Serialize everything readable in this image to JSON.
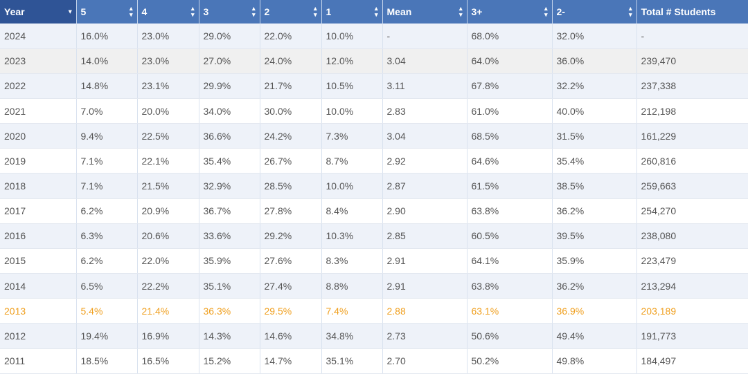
{
  "table": {
    "headers": [
      "Year",
      "5",
      "4",
      "3",
      "2",
      "1",
      "Mean",
      "3+",
      "2-",
      "Total # Students"
    ],
    "rows": [
      [
        "2024",
        "16.0%",
        "23.0%",
        "29.0%",
        "22.0%",
        "10.0%",
        "-",
        "68.0%",
        "32.0%",
        "-"
      ],
      [
        "2023",
        "14.0%",
        "23.0%",
        "27.0%",
        "24.0%",
        "12.0%",
        "3.04",
        "64.0%",
        "36.0%",
        "239,470"
      ],
      [
        "2022",
        "14.8%",
        "23.1%",
        "29.9%",
        "21.7%",
        "10.5%",
        "3.11",
        "67.8%",
        "32.2%",
        "237,338"
      ],
      [
        "2021",
        "7.0%",
        "20.0%",
        "34.0%",
        "30.0%",
        "10.0%",
        "2.83",
        "61.0%",
        "40.0%",
        "212,198"
      ],
      [
        "2020",
        "9.4%",
        "22.5%",
        "36.6%",
        "24.2%",
        "7.3%",
        "3.04",
        "68.5%",
        "31.5%",
        "161,229"
      ],
      [
        "2019",
        "7.1%",
        "22.1%",
        "35.4%",
        "26.7%",
        "8.7%",
        "2.92",
        "64.6%",
        "35.4%",
        "260,816"
      ],
      [
        "2018",
        "7.1%",
        "21.5%",
        "32.9%",
        "28.5%",
        "10.0%",
        "2.87",
        "61.5%",
        "38.5%",
        "259,663"
      ],
      [
        "2017",
        "6.2%",
        "20.9%",
        "36.7%",
        "27.8%",
        "8.4%",
        "2.90",
        "63.8%",
        "36.2%",
        "254,270"
      ],
      [
        "2016",
        "6.3%",
        "20.6%",
        "33.6%",
        "29.2%",
        "10.3%",
        "2.85",
        "60.5%",
        "39.5%",
        "238,080"
      ],
      [
        "2015",
        "6.2%",
        "22.0%",
        "35.9%",
        "27.6%",
        "8.3%",
        "2.91",
        "64.1%",
        "35.9%",
        "223,479"
      ],
      [
        "2014",
        "6.5%",
        "22.2%",
        "35.1%",
        "27.4%",
        "8.8%",
        "2.91",
        "63.8%",
        "36.2%",
        "213,294"
      ],
      [
        "2013",
        "5.4%",
        "21.4%",
        "36.3%",
        "29.5%",
        "7.4%",
        "2.88",
        "63.1%",
        "36.9%",
        "203,189"
      ],
      [
        "2012",
        "19.4%",
        "16.9%",
        "14.3%",
        "14.6%",
        "34.8%",
        "2.73",
        "50.6%",
        "49.4%",
        "191,773"
      ],
      [
        "2011",
        "18.5%",
        "16.5%",
        "15.2%",
        "14.7%",
        "35.1%",
        "2.70",
        "50.2%",
        "49.8%",
        "184,497"
      ]
    ],
    "hovered_row_index": 1,
    "highlighted_row_index": 11
  },
  "icons": {
    "year_sort": "sort-descending-icon",
    "column_sort": "sort-both-icon"
  },
  "colors": {
    "header_bg": "#4a76b8",
    "header_first_bg": "#2f5496",
    "row_stripe": "#eef2f9",
    "row_hover": "#f0f0f0",
    "highlight_text": "#f0a020",
    "cell_text": "#555555"
  }
}
